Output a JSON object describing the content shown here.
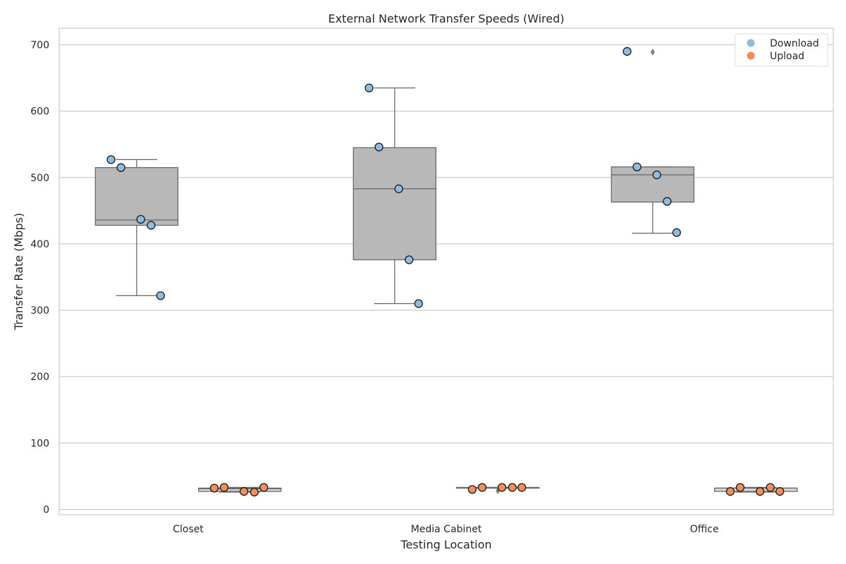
{
  "chart_data": {
    "type": "box",
    "title": "External Network Transfer Speeds (Wired)",
    "xlabel": "Testing Location",
    "ylabel": "Transfer Rate (Mbps)",
    "categories": [
      "Closet",
      "Media Cabinet",
      "Office"
    ],
    "ylim": [
      -8,
      725
    ],
    "yticks": [
      0,
      100,
      200,
      300,
      400,
      500,
      600,
      700
    ],
    "grid": "horizontal",
    "legend_position": "top-right",
    "series": [
      {
        "name": "Download",
        "color": "#8fbce0",
        "box_color": "#b8b8b8",
        "boxes": [
          {
            "whisker_low": 322,
            "q1": 428,
            "median": 436,
            "q3": 515,
            "whisker_high": 527,
            "outliers": []
          },
          {
            "whisker_low": 310,
            "q1": 376,
            "median": 483,
            "q3": 545,
            "whisker_high": 635,
            "outliers": []
          },
          {
            "whisker_low": 416,
            "q1": 463,
            "median": 504,
            "q3": 516,
            "whisker_high": 516,
            "outliers": [
              689
            ]
          }
        ],
        "points": [
          [
            527,
            515,
            437,
            428,
            322
          ],
          [
            635,
            546,
            483,
            376,
            310
          ],
          [
            690,
            516,
            504,
            464,
            417
          ]
        ]
      },
      {
        "name": "Upload",
        "color": "#f48d57",
        "box_color": "#d6d6d6",
        "boxes": [
          {
            "whisker_low": 26,
            "q1": 27,
            "median": 31,
            "q3": 32,
            "whisker_high": 33,
            "outliers": []
          },
          {
            "whisker_low": 32,
            "q1": 32,
            "median": 32,
            "q3": 33,
            "whisker_high": 33,
            "outliers": [
              28
            ]
          },
          {
            "whisker_low": 26,
            "q1": 27,
            "median": 32,
            "q3": 32,
            "whisker_high": 33,
            "outliers": []
          }
        ],
        "points": [
          [
            32,
            33,
            27,
            26,
            33
          ],
          [
            30,
            33,
            33,
            33,
            33
          ],
          [
            27,
            33,
            27,
            33,
            27
          ]
        ]
      }
    ]
  }
}
